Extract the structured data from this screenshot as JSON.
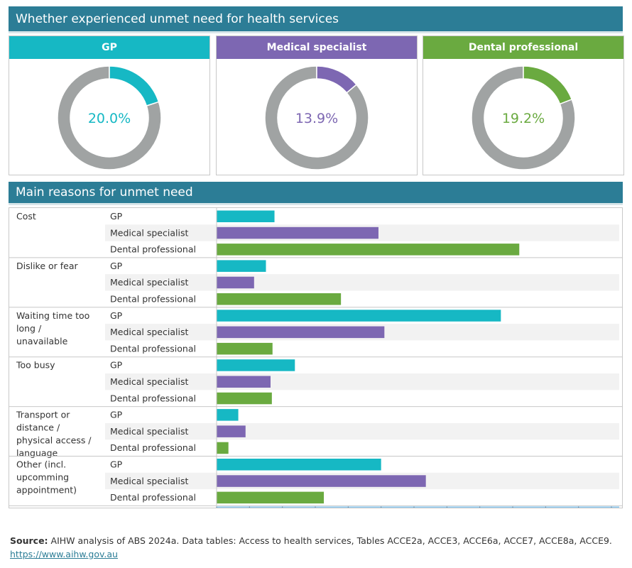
{
  "header": {
    "title": "Whether experienced unmet need for health services",
    "reasons_title": "Main reasons for unmet need"
  },
  "colors": {
    "banner": "#2c7d96",
    "gp": "#16b8c4",
    "specialist": "#7d67b2",
    "dental": "#6aaa40",
    "remainder": "#a0a3a3",
    "axis_band": "#8fcbf2"
  },
  "donuts": [
    {
      "label": "GP",
      "value": 20.0,
      "display": "20.0%",
      "color": "#16b8c4"
    },
    {
      "label": "Medical specialist",
      "value": 13.9,
      "display": "13.9%",
      "color": "#7d67b2"
    },
    {
      "label": "Dental professional",
      "value": 19.2,
      "display": "19.2%",
      "color": "#6aaa40"
    }
  ],
  "chart_data": {
    "type": "bar",
    "orientation": "horizontal",
    "categories": [
      "Cost",
      "Dislike or fear",
      "Waiting time too long / unavailable",
      "Too busy",
      "Transport or distance / physical access / language",
      "Other (incl. upcomming appointment)"
    ],
    "series": [
      {
        "name": "GP",
        "values": [
          8.8,
          7.5,
          43.2,
          11.9,
          3.3,
          25.0
        ]
      },
      {
        "name": "Medical specialist",
        "values": [
          24.6,
          5.7,
          25.5,
          8.2,
          4.4,
          31.8
        ]
      },
      {
        "name": "Dental professional",
        "values": [
          46.0,
          18.9,
          8.5,
          8.4,
          1.8,
          16.3
        ]
      }
    ],
    "xlim": [
      0,
      60
    ],
    "xticks": [
      "0%",
      "5%",
      "10%",
      "15%",
      "20%",
      "25%",
      "30%",
      "35%",
      "40%",
      "45%",
      "50%",
      "55%",
      "60%"
    ],
    "grid": false
  },
  "footer": {
    "source_label": "Source:",
    "source_text": "AIHW analysis of ABS 2024a. Data tables: Access to health services, Tables ACCE2a, ACCE3, ACCE6a, ACCE7, ACCE8a, ACCE9.",
    "link": "https://www.aihw.gov.au"
  }
}
